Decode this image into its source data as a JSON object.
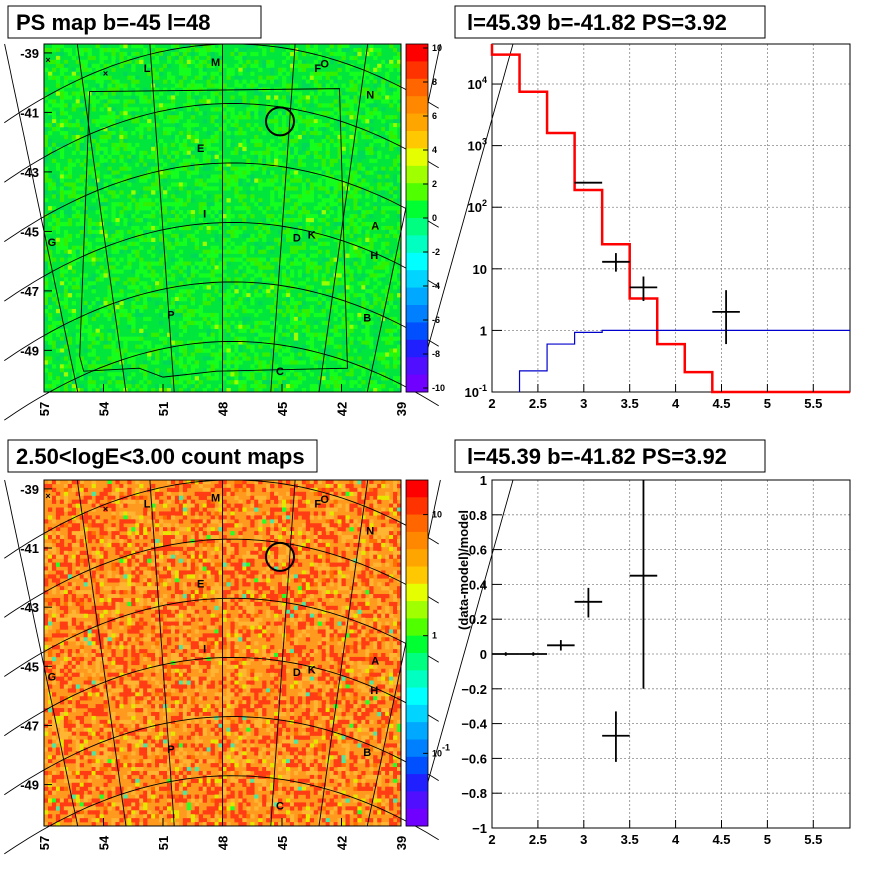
{
  "chart_data": [
    {
      "type": "heatmap",
      "title": "PS map b=-45 l=48",
      "x_ticks": [
        "57",
        "54",
        "51",
        "48",
        "45",
        "42",
        "39"
      ],
      "y_ticks": [
        "-39",
        "-41",
        "-43",
        "-45",
        "-47",
        "-49"
      ],
      "xlim": [
        57,
        39
      ],
      "ylim": [
        -50.4,
        -38.7
      ],
      "colorbar": {
        "ticks": [
          "10",
          "8",
          "6",
          "4",
          "2",
          "0",
          "-2",
          "-4",
          "-6",
          "-8",
          "-10"
        ],
        "range": [
          -10,
          10
        ]
      },
      "source_labels": [
        {
          "t": "M",
          "l": 48.35,
          "b": -39.3
        },
        {
          "t": "L",
          "l": 51.8,
          "b": -39.5
        },
        {
          "t": "F",
          "l": 43.2,
          "b": -39.5
        },
        {
          "t": "O",
          "l": 42.85,
          "b": -39.35
        },
        {
          "t": "N",
          "l": 40.55,
          "b": -40.4
        },
        {
          "t": "E",
          "l": 49.1,
          "b": -42.2
        },
        {
          "t": "I",
          "l": 48.9,
          "b": -44.4
        },
        {
          "t": "D",
          "l": 44.25,
          "b": -45.2
        },
        {
          "t": "K",
          "l": 43.5,
          "b": -45.1
        },
        {
          "t": "A",
          "l": 40.3,
          "b": -44.8
        },
        {
          "t": "H",
          "l": 40.35,
          "b": -45.8
        },
        {
          "t": "G",
          "l": 56.6,
          "b": -45.35
        },
        {
          "t": "P",
          "l": 50.6,
          "b": -47.8
        },
        {
          "t": "B",
          "l": 40.7,
          "b": -47.9
        },
        {
          "t": "C",
          "l": 45.1,
          "b": -49.7
        }
      ],
      "marker": {
        "l": 45.1,
        "b": -41.3
      }
    },
    {
      "type": "histogram",
      "title": "l=45.39 b=-41.82 PS=3.92",
      "xlim": [
        2,
        6
      ],
      "ylim": [
        0.1,
        100000
      ],
      "yscale": "log",
      "x_ticks": [
        "2",
        "2.5",
        "3",
        "3.5",
        "4",
        "4.5",
        "5",
        "5.5"
      ],
      "y_ticks": [
        "10^-1",
        "1",
        "10",
        "10^2",
        "10^3",
        "10^4"
      ],
      "series": [
        {
          "color": "#ff0000",
          "bins": [
            2,
            2.3,
            2.6,
            2.9,
            3.2,
            3.5,
            3.8,
            4.1,
            4.4,
            6
          ],
          "values": [
            30000,
            7500,
            1600,
            190,
            25,
            3.3,
            0.6,
            0.21,
            0.1
          ]
        },
        {
          "color": "#0000cc",
          "bins": [
            2.3,
            2.6,
            2.9,
            3.2,
            6
          ],
          "values": [
            0.22,
            0.6,
            0.93,
            1.0
          ]
        }
      ],
      "points": [
        {
          "x": 3.05,
          "y": 250,
          "xerr": 0.15,
          "ylo": 250,
          "yhi": 250
        },
        {
          "x": 3.35,
          "y": 13,
          "xerr": 0.15,
          "ylo": 9,
          "yhi": 18
        },
        {
          "x": 3.65,
          "y": 5,
          "xerr": 0.15,
          "ylo": 3,
          "yhi": 7.5
        },
        {
          "x": 4.55,
          "y": 2,
          "xerr": 0.15,
          "ylo": 0.6,
          "yhi": 4.5
        }
      ]
    },
    {
      "type": "heatmap",
      "title": "2.50<logE<3.00 count maps",
      "x_ticks": [
        "57",
        "54",
        "51",
        "48",
        "45",
        "42",
        "39"
      ],
      "y_ticks": [
        "-39",
        "-41",
        "-43",
        "-45",
        "-47",
        "-49"
      ],
      "xlim": [
        57,
        39
      ],
      "ylim": [
        -50.4,
        -38.7
      ],
      "colorbar": {
        "ticks": [
          "10",
          "1",
          "10^-1"
        ],
        "scale": "log"
      },
      "source_labels": [
        {
          "t": "M",
          "l": 48.35,
          "b": -39.3
        },
        {
          "t": "L",
          "l": 51.8,
          "b": -39.5
        },
        {
          "t": "F",
          "l": 43.2,
          "b": -39.5
        },
        {
          "t": "O",
          "l": 42.85,
          "b": -39.35
        },
        {
          "t": "N",
          "l": 40.55,
          "b": -40.4
        },
        {
          "t": "E",
          "l": 49.1,
          "b": -42.2
        },
        {
          "t": "I",
          "l": 48.9,
          "b": -44.4
        },
        {
          "t": "D",
          "l": 44.25,
          "b": -45.2
        },
        {
          "t": "K",
          "l": 43.5,
          "b": -45.1
        },
        {
          "t": "A",
          "l": 40.3,
          "b": -44.8
        },
        {
          "t": "H",
          "l": 40.35,
          "b": -45.8
        },
        {
          "t": "G",
          "l": 56.6,
          "b": -45.35
        },
        {
          "t": "P",
          "l": 50.6,
          "b": -47.8
        },
        {
          "t": "B",
          "l": 40.7,
          "b": -47.9
        },
        {
          "t": "C",
          "l": 45.1,
          "b": -49.7
        }
      ],
      "marker": {
        "l": 45.1,
        "b": -41.3
      }
    },
    {
      "type": "scatter",
      "title": "l=45.39 b=-41.82 PS=3.92",
      "ylabel": "(data-model)/model",
      "xlim": [
        2,
        6
      ],
      "ylim": [
        -1,
        1
      ],
      "x_ticks": [
        "2",
        "2.5",
        "3",
        "3.5",
        "4",
        "4.5",
        "5",
        "5.5"
      ],
      "y_ticks": [
        "1",
        "0.8",
        "0.6",
        "0.4",
        "0.2",
        "0",
        "-0.2",
        "-0.4",
        "-0.6",
        "-0.8",
        "-1"
      ],
      "points": [
        {
          "x": 2.15,
          "y": 0.0,
          "xerr": 0.15,
          "ylo": -0.01,
          "yhi": 0.01
        },
        {
          "x": 2.45,
          "y": 0.0,
          "xerr": 0.15,
          "ylo": -0.01,
          "yhi": 0.01
        },
        {
          "x": 2.75,
          "y": 0.05,
          "xerr": 0.15,
          "ylo": 0.02,
          "yhi": 0.08
        },
        {
          "x": 3.05,
          "y": 0.3,
          "xerr": 0.15,
          "ylo": 0.21,
          "yhi": 0.38
        },
        {
          "x": 3.35,
          "y": -0.47,
          "xerr": 0.15,
          "ylo": -0.62,
          "yhi": -0.33
        },
        {
          "x": 3.65,
          "y": 0.45,
          "xerr": 0.15,
          "ylo": -0.2,
          "yhi": 1.0
        }
      ]
    }
  ]
}
